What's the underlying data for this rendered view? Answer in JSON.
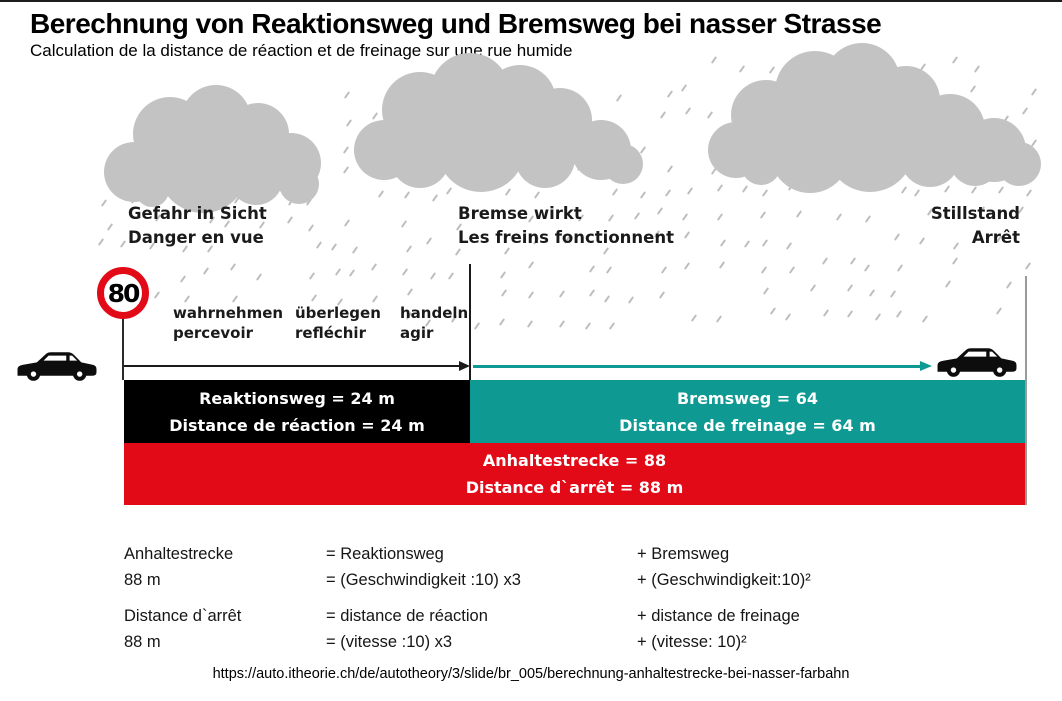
{
  "header": {
    "title": "Berechnung von Reaktionsweg und Bremsweg bei nasser Strasse",
    "subtitle": "Calculation de la distance de réaction et de freinage sur une rue  humide"
  },
  "speed_sign": {
    "value": "80"
  },
  "stages": [
    {
      "de": "Gefahr in Sicht",
      "fr": "Danger en vue"
    },
    {
      "de": "Bremse wirkt",
      "fr": "Les freins fonctionnent"
    },
    {
      "de": "Stillstand",
      "fr": "Arrêt"
    }
  ],
  "phases": [
    {
      "de": "wahrnehmen",
      "fr": "percevoir"
    },
    {
      "de": "überlegen",
      "fr": "refléchir"
    },
    {
      "de": "handeln",
      "fr": "agir"
    }
  ],
  "bars": {
    "reaction": {
      "line1": "Reaktionsweg = 24 m",
      "line2": "Distance de réaction = 24 m",
      "color": "#000000"
    },
    "braking": {
      "line1": "Bremsweg = 64",
      "line2": "Distance de freinage = 64 m",
      "color": "#0e9a93"
    },
    "stopping": {
      "line1": "Anhaltestrecke = 88",
      "line2": "Distance d`arrêt = 88 m",
      "color": "#e30a17"
    }
  },
  "formulas": {
    "de": {
      "label_line1": "Anhaltestrecke",
      "label_line2": "88 m",
      "reaction_line1": "= Reaktionsweg",
      "reaction_line2": "= (Geschwindigkeit :10) x3",
      "braking_line1": "+ Bremsweg",
      "braking_line2": "+ (Geschwindigkeit:10)²"
    },
    "fr": {
      "label_line1": "Distance d`arrêt",
      "label_line2": "88 m",
      "reaction_line1": "= distance de réaction",
      "reaction_line2": "= (vitesse :10) x3",
      "braking_line1": "+ distance de freinage",
      "braking_line2": "+ (vitesse: 10)²"
    }
  },
  "footer": {
    "url": "https://auto.itheorie.ch/de/autotheory/3/slide/br_005/berechnung-anhaltestrecke-bei-nasser-farbahn"
  },
  "colors": {
    "teal": "#0e9a93",
    "red": "#e30a17",
    "cloud": "#c3c3c3",
    "rain": "#bdbdbd"
  }
}
